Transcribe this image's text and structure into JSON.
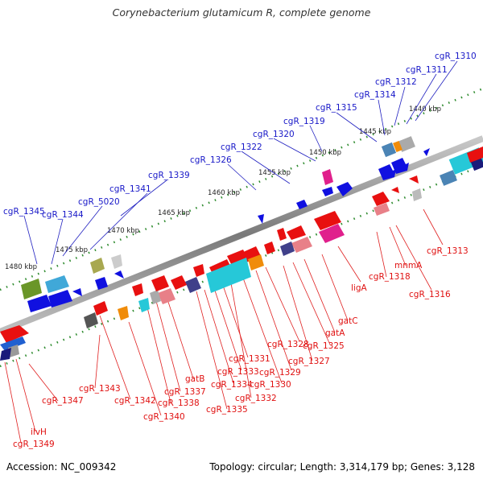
{
  "title": "Corynebacterium glutamicum R, complete genome",
  "footer": {
    "accession": "Accession: NC_009342",
    "topology": "Topology: circular; Length: 3,314,179 bp; Genes: 3,128"
  },
  "scale": {
    "ticks": [
      "1440 kbp",
      "1445 kbp",
      "1450 kbp",
      "1455 kbp",
      "1460 kbp",
      "1465 kbp",
      "1470 kbp",
      "1475 kbp",
      "1480 kbp"
    ]
  },
  "genes_top": [
    "cgR_1310",
    "cgR_1311",
    "cgR_1312",
    "cgR_1314",
    "cgR_1315",
    "cgR_1319",
    "cgR_1320",
    "cgR_1322",
    "cgR_1326",
    "cgR_1339",
    "cgR_1341",
    "cgR_5020",
    "cgR_1344",
    "cgR_1345"
  ],
  "genes_bottom": [
    "cgR_1313",
    "mnmA",
    "cgR_1316",
    "cgR_1318",
    "ligA",
    "gatC",
    "gatA",
    "cgR_1325",
    "cgR_1327",
    "cgR_1328",
    "cgR_1329",
    "cgR_1330",
    "cgR_1331",
    "cgR_1332",
    "cgR_1333",
    "cgR_1334",
    "cgR_1335",
    "gatB",
    "cgR_1337",
    "cgR_1338",
    "cgR_1340",
    "cgR_1342",
    "cgR_1343",
    "cgR_1347",
    "ilvH",
    "cgR_1349"
  ],
  "colors": {
    "top_label": "#1818c8",
    "bottom_label": "#e01010",
    "backbone": "#888888",
    "tick": "#2e8b2e",
    "forward_gene": "#e81010",
    "reverse_gene": "#1010e0"
  }
}
